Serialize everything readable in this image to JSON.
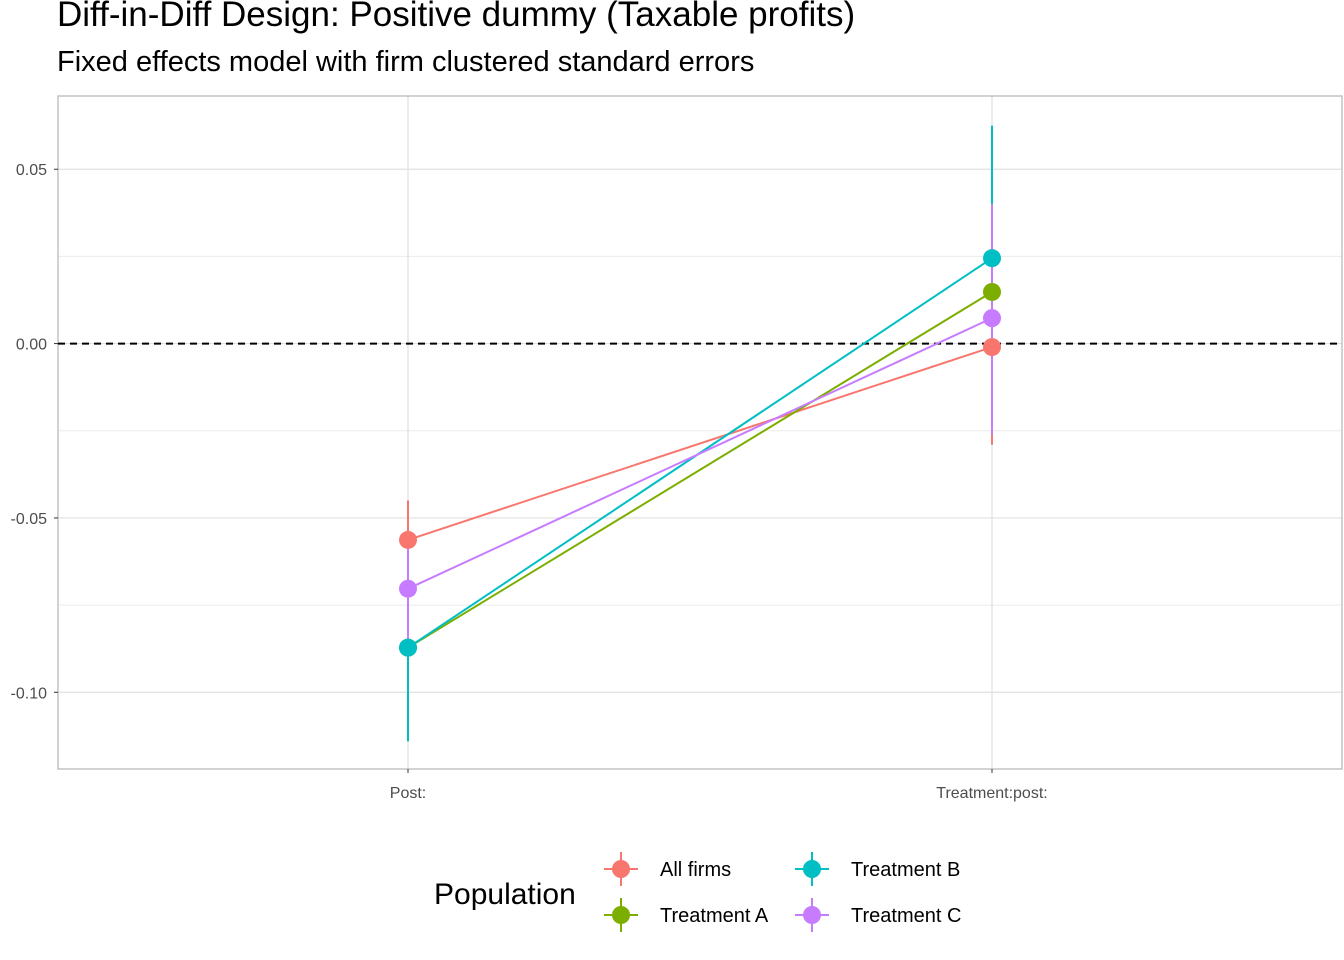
{
  "chart_data": {
    "type": "scatter",
    "title": "Diff-in-Diff Design: Positive dummy (Taxable profits)",
    "subtitle": "Fixed effects model with firm clustered standard errors",
    "xlabel": "",
    "ylabel": "",
    "categories": [
      "Post:",
      "Treatment:post:"
    ],
    "ylim": [
      -0.122,
      0.071
    ],
    "y_ticks": [
      -0.1,
      -0.05,
      0.0,
      0.05
    ],
    "y_tick_labels": [
      "-0.10",
      "-0.05",
      "0.00",
      "0.05"
    ],
    "reference_line": 0.0,
    "grid": true,
    "legend_position": "bottom",
    "legend_title": "Population",
    "series": [
      {
        "name": "All firms",
        "color": "#F8766D",
        "values": [
          -0.0563,
          -0.001
        ],
        "lower": [
          -0.067,
          -0.029
        ],
        "upper": [
          -0.045,
          0.024
        ]
      },
      {
        "name": "Treatment A",
        "color": "#7CAE00",
        "values": [
          -0.0872,
          0.0148
        ],
        "lower": [
          -0.114,
          -0.025
        ],
        "upper": [
          -0.06,
          0.055
        ]
      },
      {
        "name": "Treatment B",
        "color": "#00BFC4",
        "values": [
          -0.0872,
          0.0245
        ],
        "lower": [
          -0.114,
          -0.013
        ],
        "upper": [
          -0.06,
          0.0625
        ]
      },
      {
        "name": "Treatment C",
        "color": "#C77CFF",
        "values": [
          -0.0703,
          0.0073
        ],
        "lower": [
          -0.087,
          -0.026
        ],
        "upper": [
          -0.054,
          0.04
        ]
      }
    ]
  }
}
